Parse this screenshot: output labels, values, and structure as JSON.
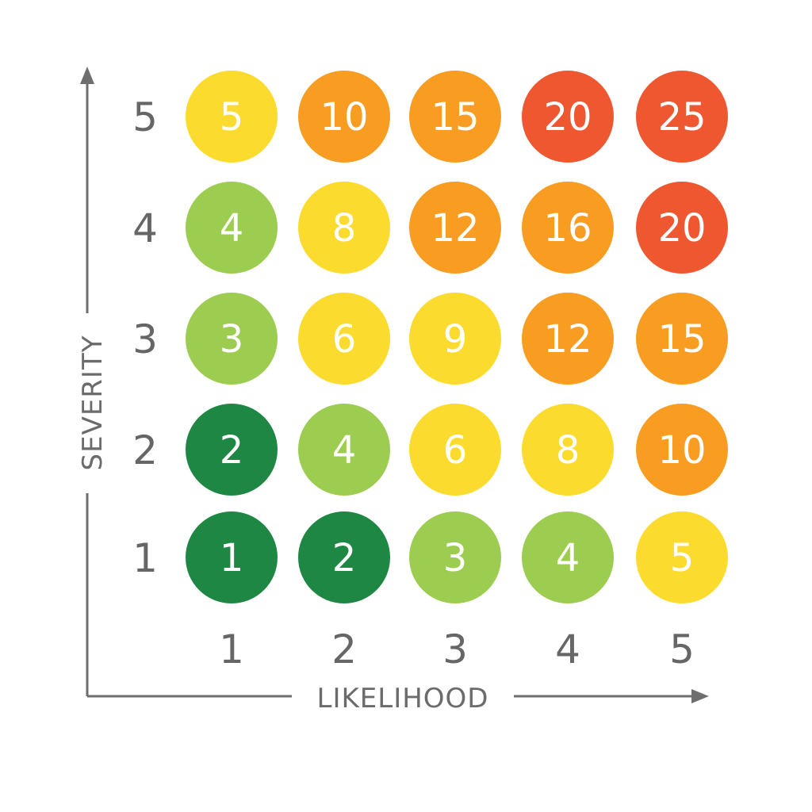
{
  "chart_data": {
    "type": "heatmap",
    "xlabel": "LIKELIHOOD",
    "ylabel": "SEVERITY",
    "x": [
      1,
      2,
      3,
      4,
      5
    ],
    "y": [
      1,
      2,
      3,
      4,
      5
    ],
    "x_tick_labels": [
      "1",
      "2",
      "3",
      "4",
      "5"
    ],
    "y_tick_labels": [
      "1",
      "2",
      "3",
      "4",
      "5"
    ],
    "values": [
      {
        "row": 5,
        "cells": [
          5,
          10,
          15,
          20,
          25
        ]
      },
      {
        "row": 4,
        "cells": [
          4,
          8,
          12,
          16,
          20
        ]
      },
      {
        "row": 3,
        "cells": [
          3,
          6,
          9,
          12,
          15
        ]
      },
      {
        "row": 2,
        "cells": [
          2,
          4,
          6,
          8,
          10
        ]
      },
      {
        "row": 1,
        "cells": [
          1,
          2,
          3,
          4,
          5
        ]
      }
    ],
    "color_scale": [
      {
        "min": 1,
        "max": 2,
        "color": "#1e8744"
      },
      {
        "min": 3,
        "max": 4,
        "color": "#9ccc50"
      },
      {
        "min": 5,
        "max": 9,
        "color": "#fbdc2e"
      },
      {
        "min": 10,
        "max": 16,
        "color": "#f89c22"
      },
      {
        "min": 20,
        "max": 25,
        "color": "#ef5730"
      }
    ],
    "grid": false,
    "legend": "none"
  }
}
